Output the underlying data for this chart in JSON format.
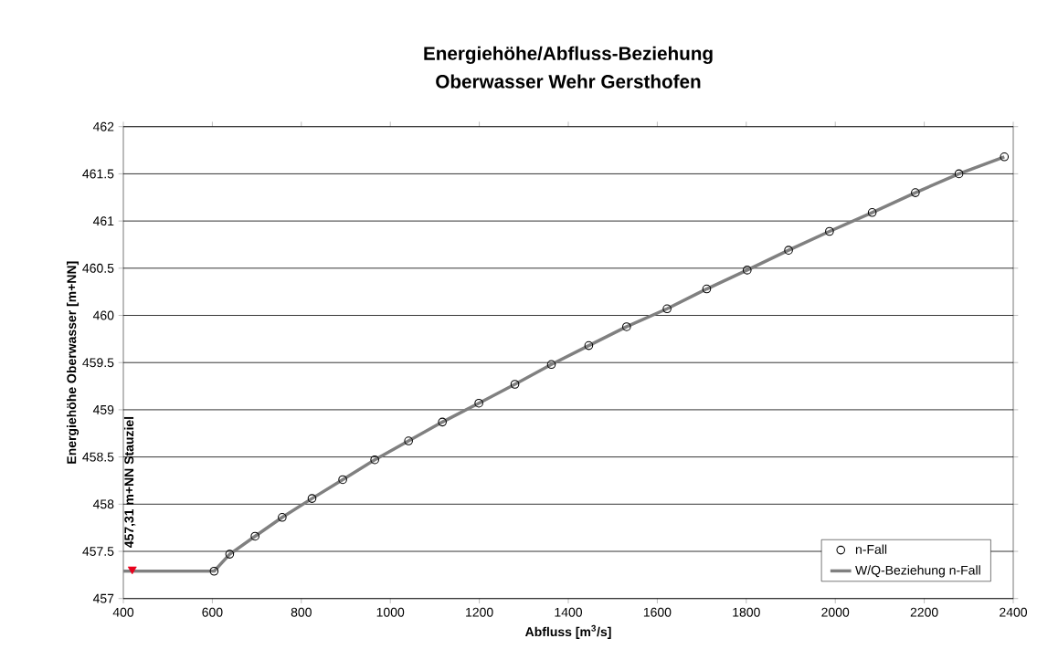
{
  "chart_data": {
    "type": "scatter",
    "title": "Energiehöhe/Abfluss-Beziehung",
    "subtitle": "Oberwasser Wehr Gersthofen",
    "xlabel": "Abfluss [m$^{3}$/s]",
    "ylabel": "Energiehöhe Oberwasser [m+NN]",
    "xlim": [
      400,
      2400
    ],
    "xticks": [
      400,
      600,
      800,
      1000,
      1200,
      1400,
      1600,
      1800,
      2000,
      2200,
      2400
    ],
    "ylim": [
      457,
      462
    ],
    "yticks": [
      457,
      457.5,
      458,
      458.5,
      459,
      459.5,
      460,
      460.5,
      461,
      461.5,
      462
    ],
    "grid": "y",
    "legend": "bottom right",
    "series": [
      {
        "name": "W/Q-Beziehung n-Fall",
        "type": "line",
        "color": "#808080",
        "marker": "none",
        "line_style": "solid",
        "x": [
          400,
          604,
          639,
          696,
          757,
          824,
          893,
          965,
          1041,
          1117,
          1199,
          1280,
          1362,
          1446,
          1531,
          1622,
          1711,
          1802,
          1895,
          1987,
          2083,
          2180,
          2278,
          2380
        ],
        "values": [
          457.29,
          457.29,
          457.47,
          457.66,
          457.86,
          458.06,
          458.26,
          458.47,
          458.67,
          458.87,
          459.07,
          459.27,
          459.48,
          459.68,
          459.88,
          460.07,
          460.28,
          460.48,
          460.69,
          460.89,
          461.09,
          461.3,
          461.5,
          461.68
        ]
      },
      {
        "name": "n-Fall",
        "color": "#000000",
        "marker": "circle",
        "x": [
          604,
          639,
          696,
          757,
          824,
          893,
          965,
          1041,
          1117,
          1199,
          1280,
          1362,
          1446,
          1531,
          1622,
          1711,
          1802,
          1895,
          1987,
          2083,
          2180,
          2278,
          2380
        ],
        "values": [
          457.29,
          457.47,
          457.66,
          457.86,
          458.06,
          458.26,
          458.47,
          458.67,
          458.87,
          459.07,
          459.27,
          459.48,
          459.68,
          459.88,
          460.07,
          460.28,
          460.48,
          460.69,
          460.89,
          461.09,
          461.3,
          461.5,
          461.68
        ]
      },
      {
        "color": "#e8001c",
        "marker": "triangle",
        "x": [
          420
        ],
        "values": [
          457.31
        ]
      }
    ],
    "annotations": [
      {
        "text": "457,31 m+NN Stauziel",
        "x": 420,
        "y": 457.31
      }
    ]
  }
}
